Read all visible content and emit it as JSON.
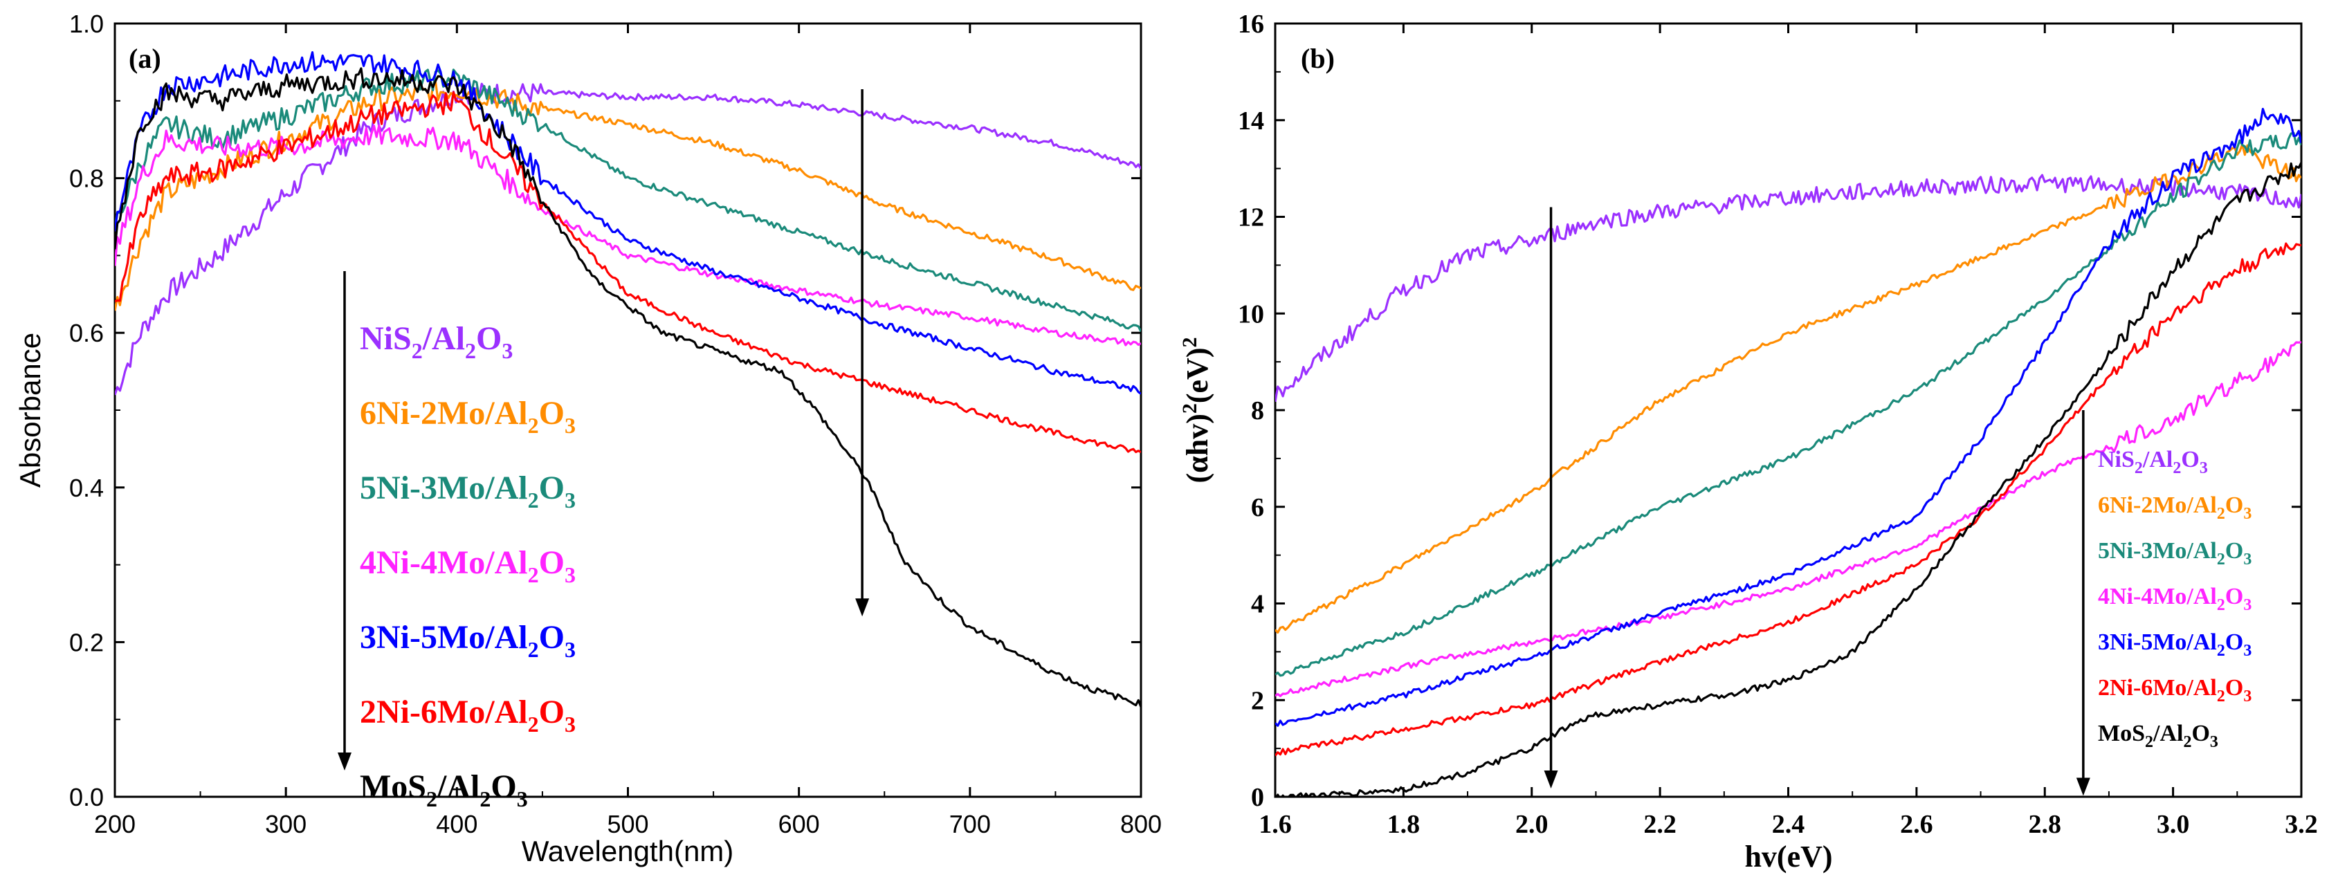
{
  "colors": {
    "NiS2": "#9b30ff",
    "6Ni2Mo": "#ff8c00",
    "5Ni3Mo": "#1a8a7a",
    "4Ni4Mo": "#ff22ff",
    "3Ni5Mo": "#0000ff",
    "2Ni6Mo": "#ff0000",
    "MoS2": "#000000"
  },
  "legend": [
    {
      "key": "NiS2",
      "parts": [
        [
          "NiS",
          ""
        ],
        [
          "2",
          "sub"
        ],
        [
          "/Al",
          ""
        ],
        [
          "2",
          "sub"
        ],
        [
          "O",
          ""
        ],
        [
          "3",
          "sub"
        ]
      ]
    },
    {
      "key": "6Ni2Mo",
      "parts": [
        [
          "6Ni-2Mo/Al",
          ""
        ],
        [
          "2",
          "sub"
        ],
        [
          "O",
          ""
        ],
        [
          "3",
          "sub"
        ]
      ]
    },
    {
      "key": "5Ni3Mo",
      "parts": [
        [
          "5Ni-3Mo/Al",
          ""
        ],
        [
          "2",
          "sub"
        ],
        [
          "O",
          ""
        ],
        [
          "3",
          "sub"
        ]
      ]
    },
    {
      "key": "4Ni4Mo",
      "parts": [
        [
          "4Ni-4Mo/Al",
          ""
        ],
        [
          "2",
          "sub"
        ],
        [
          "O",
          ""
        ],
        [
          "3",
          "sub"
        ]
      ]
    },
    {
      "key": "3Ni5Mo",
      "parts": [
        [
          "3Ni-5Mo/Al",
          ""
        ],
        [
          "2",
          "sub"
        ],
        [
          "O",
          ""
        ],
        [
          "3",
          "sub"
        ]
      ]
    },
    {
      "key": "2Ni6Mo",
      "parts": [
        [
          "2Ni-6Mo/Al",
          ""
        ],
        [
          "2",
          "sub"
        ],
        [
          "O",
          ""
        ],
        [
          "3",
          "sub"
        ]
      ]
    },
    {
      "key": "MoS2",
      "parts": [
        [
          "MoS",
          ""
        ],
        [
          "2",
          "sub"
        ],
        [
          "/Al",
          ""
        ],
        [
          "2",
          "sub"
        ],
        [
          "O",
          ""
        ],
        [
          "3",
          "sub"
        ]
      ]
    }
  ],
  "chart_data": [
    {
      "panel": "(a)",
      "type": "line",
      "xlabel": "Wavelength(nm)",
      "ylabel": "Absorbance",
      "xlim": [
        200,
        800
      ],
      "ylim": [
        0.0,
        1.0
      ],
      "xticks": [
        "200",
        "300",
        "400",
        "500",
        "600",
        "700",
        "800"
      ],
      "yticks": [
        "0.0",
        "0.2",
        "0.4",
        "0.6",
        "0.8",
        "1.0"
      ],
      "arrow": {
        "x": 637,
        "y_from": 0.915,
        "y_to": 0.235
      },
      "series": [
        {
          "key": "NiS2",
          "x": [
            200,
            215,
            230,
            260,
            300,
            350,
            400,
            450,
            500,
            550,
            600,
            650,
            700,
            750,
            800
          ],
          "y": [
            0.52,
            0.6,
            0.65,
            0.7,
            0.78,
            0.87,
            0.91,
            0.91,
            0.905,
            0.905,
            0.895,
            0.88,
            0.865,
            0.845,
            0.815
          ]
        },
        {
          "key": "6Ni2Mo",
          "x": [
            200,
            215,
            230,
            260,
            300,
            350,
            400,
            450,
            500,
            550,
            600,
            650,
            700,
            750,
            800
          ],
          "y": [
            0.63,
            0.72,
            0.78,
            0.81,
            0.85,
            0.9,
            0.915,
            0.89,
            0.87,
            0.845,
            0.81,
            0.765,
            0.73,
            0.695,
            0.655
          ]
        },
        {
          "key": "5Ni3Mo",
          "x": [
            200,
            215,
            230,
            260,
            300,
            350,
            400,
            450,
            500,
            550,
            600,
            650,
            700,
            750,
            800
          ],
          "y": [
            0.74,
            0.82,
            0.87,
            0.85,
            0.88,
            0.92,
            0.93,
            0.87,
            0.8,
            0.765,
            0.73,
            0.695,
            0.665,
            0.635,
            0.605
          ]
        },
        {
          "key": "4Ni4Mo",
          "x": [
            200,
            215,
            230,
            260,
            300,
            350,
            400,
            450,
            500,
            550,
            600,
            650,
            700,
            750,
            800
          ],
          "y": [
            0.7,
            0.8,
            0.85,
            0.84,
            0.84,
            0.855,
            0.85,
            0.76,
            0.7,
            0.675,
            0.655,
            0.635,
            0.62,
            0.6,
            0.585
          ]
        },
        {
          "key": "3Ni5Mo",
          "x": [
            200,
            215,
            230,
            260,
            300,
            350,
            400,
            450,
            500,
            550,
            600,
            650,
            700,
            750,
            800
          ],
          "y": [
            0.74,
            0.86,
            0.92,
            0.93,
            0.95,
            0.95,
            0.93,
            0.8,
            0.72,
            0.68,
            0.645,
            0.61,
            0.58,
            0.55,
            0.525
          ]
        },
        {
          "key": "2Ni6Mo",
          "x": [
            200,
            215,
            230,
            260,
            300,
            350,
            400,
            450,
            500,
            550,
            600,
            650,
            700,
            750,
            800
          ],
          "y": [
            0.63,
            0.75,
            0.8,
            0.81,
            0.84,
            0.88,
            0.9,
            0.77,
            0.65,
            0.6,
            0.56,
            0.53,
            0.5,
            0.47,
            0.445
          ]
        },
        {
          "key": "MoS2",
          "x": [
            200,
            215,
            230,
            260,
            300,
            350,
            400,
            430,
            450,
            480,
            520,
            560,
            590,
            610,
            640,
            660,
            680,
            700,
            740,
            770,
            800
          ],
          "y": [
            0.72,
            0.87,
            0.91,
            0.9,
            0.92,
            0.93,
            0.92,
            0.85,
            0.77,
            0.67,
            0.6,
            0.57,
            0.55,
            0.5,
            0.41,
            0.31,
            0.26,
            0.22,
            0.17,
            0.14,
            0.12
          ]
        }
      ]
    },
    {
      "panel": "(b)",
      "type": "line",
      "xlabel": "hv(eV)",
      "ylabel": "(αhv)²(eV)²",
      "xlim": [
        1.6,
        3.2
      ],
      "ylim": [
        0,
        16
      ],
      "xticks": [
        "1.6",
        "1.8",
        "2.0",
        "2.2",
        "2.4",
        "2.6",
        "2.8",
        "3.0",
        "3.2"
      ],
      "yticks": [
        "0",
        "2",
        "4",
        "6",
        "8",
        "10",
        "12",
        "14",
        "16"
      ],
      "arrows": [
        {
          "x": 2.03,
          "y_from": 12.2,
          "y_to": 0.2
        },
        {
          "x": 2.86,
          "y_from": 8.0,
          "y_to": 0.05
        }
      ],
      "series": [
        {
          "key": "NiS2",
          "x": [
            1.6,
            1.7,
            1.8,
            1.9,
            2.0,
            2.1,
            2.2,
            2.4,
            2.6,
            2.8,
            3.0,
            3.1,
            3.2
          ],
          "y": [
            8.3,
            9.4,
            10.5,
            11.2,
            11.5,
            11.9,
            12.1,
            12.4,
            12.6,
            12.7,
            12.6,
            12.5,
            12.3
          ]
        },
        {
          "key": "6Ni2Mo",
          "x": [
            1.6,
            1.8,
            2.0,
            2.2,
            2.4,
            2.6,
            2.8,
            3.0,
            3.1,
            3.2
          ],
          "y": [
            3.4,
            4.8,
            6.3,
            8.2,
            9.6,
            10.6,
            11.7,
            12.8,
            13.4,
            12.8
          ]
        },
        {
          "key": "5Ni3Mo",
          "x": [
            1.6,
            1.8,
            2.0,
            2.2,
            2.4,
            2.6,
            2.8,
            3.0,
            3.1,
            3.2
          ],
          "y": [
            2.5,
            3.4,
            4.6,
            6.0,
            7.0,
            8.4,
            10.3,
            12.4,
            13.4,
            13.6
          ]
        },
        {
          "key": "4Ni4Mo",
          "x": [
            1.6,
            1.8,
            2.0,
            2.2,
            2.4,
            2.6,
            2.8,
            3.0,
            3.1,
            3.2
          ],
          "y": [
            2.1,
            2.7,
            3.2,
            3.7,
            4.3,
            5.2,
            6.7,
            7.8,
            8.6,
            9.3
          ]
        },
        {
          "key": "3Ni5Mo",
          "x": [
            1.6,
            1.8,
            2.0,
            2.2,
            2.4,
            2.6,
            2.7,
            2.8,
            2.9,
            3.0,
            3.1,
            3.15,
            3.2
          ],
          "y": [
            1.5,
            2.1,
            2.9,
            3.8,
            4.6,
            5.8,
            7.4,
            9.4,
            11.5,
            12.8,
            13.6,
            14.2,
            13.7
          ]
        },
        {
          "key": "2Ni6Mo",
          "x": [
            1.6,
            1.8,
            2.0,
            2.2,
            2.4,
            2.5,
            2.6,
            2.7,
            2.8,
            2.9,
            3.0,
            3.1,
            3.2
          ],
          "y": [
            0.9,
            1.4,
            1.9,
            2.8,
            3.6,
            4.2,
            4.8,
            5.8,
            7.2,
            8.7,
            10.0,
            10.9,
            11.5
          ]
        },
        {
          "key": "MoS2",
          "x": [
            1.6,
            1.7,
            1.8,
            1.9,
            2.0,
            2.05,
            2.1,
            2.2,
            2.3,
            2.4,
            2.5,
            2.6,
            2.7,
            2.8,
            2.9,
            3.0,
            3.1,
            3.2
          ],
          "y": [
            0.0,
            0.05,
            0.15,
            0.5,
            1.0,
            1.4,
            1.7,
            1.9,
            2.1,
            2.4,
            3.0,
            4.3,
            5.9,
            7.4,
            9.1,
            10.9,
            12.3,
            13.1
          ]
        }
      ]
    }
  ]
}
